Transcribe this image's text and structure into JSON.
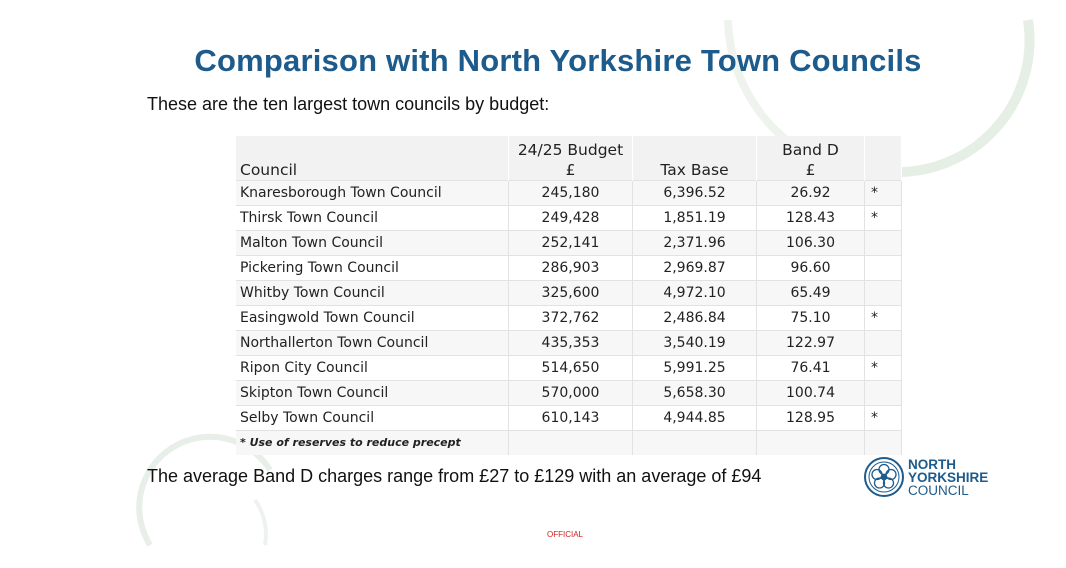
{
  "slide": {
    "title": "Comparison with North Yorkshire Town Councils",
    "subtitle": "These are the ten largest town councils by budget:",
    "summary": "The average Band D charges range from £27 to £129 with an average of £94",
    "official_label": "OFFICIAL"
  },
  "table": {
    "headers": {
      "council": "Council",
      "budget_line1": "24/25 Budget",
      "budget_line2": "£",
      "tax_base": "Tax Base",
      "band_line1": "Band D",
      "band_line2": "£"
    },
    "rows": [
      {
        "council": "Knaresborough Town Council",
        "budget": "245,180",
        "tax_base": "6,396.52",
        "band_d": "26.92",
        "note": "*"
      },
      {
        "council": "Thirsk Town Council",
        "budget": "249,428",
        "tax_base": "1,851.19",
        "band_d": "128.43",
        "note": "*"
      },
      {
        "council": "Malton Town Council",
        "budget": "252,141",
        "tax_base": "2,371.96",
        "band_d": "106.30",
        "note": ""
      },
      {
        "council": "Pickering Town Council",
        "budget": "286,903",
        "tax_base": "2,969.87",
        "band_d": "96.60",
        "note": ""
      },
      {
        "council": "Whitby Town Council",
        "budget": "325,600",
        "tax_base": "4,972.10",
        "band_d": "65.49",
        "note": ""
      },
      {
        "council": "Easingwold Town Council",
        "budget": "372,762",
        "tax_base": "2,486.84",
        "band_d": "75.10",
        "note": "*"
      },
      {
        "council": "Northallerton Town Council",
        "budget": "435,353",
        "tax_base": "3,540.19",
        "band_d": "122.97",
        "note": ""
      },
      {
        "council": "Ripon City Council",
        "budget": "514,650",
        "tax_base": "5,991.25",
        "band_d": "76.41",
        "note": "*"
      },
      {
        "council": "Skipton Town Council",
        "budget": "570,000",
        "tax_base": "5,658.30",
        "band_d": "100.74",
        "note": ""
      },
      {
        "council": "Selby Town Council",
        "budget": "610,143",
        "tax_base": "4,944.85",
        "band_d": "128.95",
        "note": "*"
      }
    ],
    "footnote": "* Use of reserves to reduce precept"
  },
  "logo": {
    "line1": "NORTH",
    "line2": "YORKSHIRE",
    "line3": "COUNCIL"
  },
  "colors": {
    "title": "#1c5b8c",
    "official": "#d02020",
    "decor_arc": "#e4eee4"
  }
}
